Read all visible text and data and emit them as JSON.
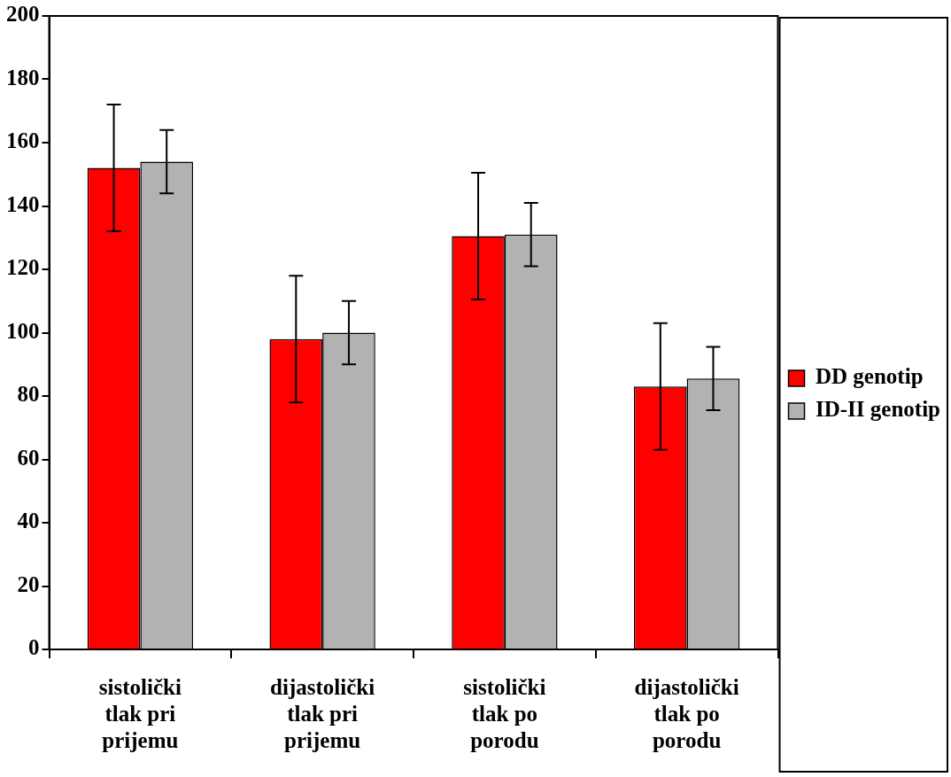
{
  "chart_data": {
    "type": "bar",
    "categories": [
      "sistolički tlak pri prijemu",
      "dijastolički tlak pri prijemu",
      "sistolički tlak po porodu",
      "dijastolički tlak po porodu"
    ],
    "series": [
      {
        "name": "DD genotip",
        "color": "#ff0000",
        "values": [
          152,
          98,
          130.5,
          83
        ],
        "errors": [
          20,
          20,
          20,
          20
        ]
      },
      {
        "name": "ID-II genotip",
        "color": "#b2b2b2",
        "values": [
          154,
          100,
          131,
          85.5
        ],
        "errors": [
          10,
          10,
          10,
          10
        ]
      }
    ],
    "ylim": [
      0,
      200
    ],
    "yticks": [
      0,
      20,
      40,
      60,
      80,
      100,
      120,
      140,
      160,
      180,
      200
    ],
    "grid": false,
    "legend": "right"
  }
}
